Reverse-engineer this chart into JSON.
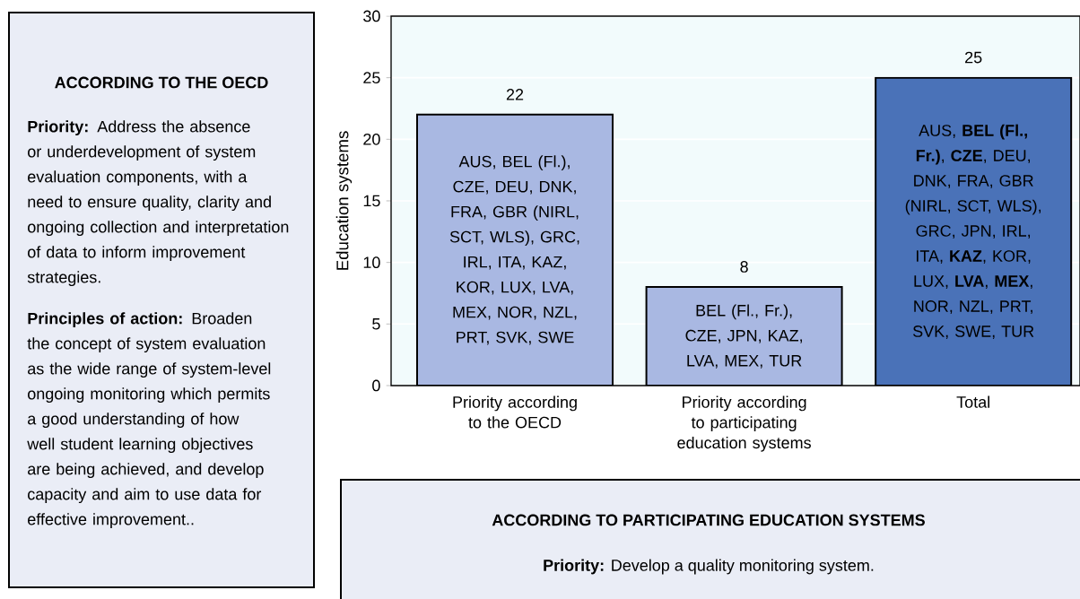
{
  "chart_data": {
    "type": "bar",
    "categories": [
      "Priority according to the OECD",
      "Priority according to participating education systems",
      "Total"
    ],
    "values": [
      22,
      8,
      25
    ],
    "colors": [
      "#a9b8e2",
      "#a9b8e2",
      "#4a72b8"
    ],
    "ylabel": "Education systems",
    "ylim": [
      0,
      30
    ],
    "yticks": [
      0,
      5,
      10,
      15,
      20,
      25,
      30
    ],
    "grid": "y",
    "data_labels": true,
    "annotations": [
      "ACCORDING TO THE OECD",
      "**Priority:** Address the absence or underdevelopment of system evaluation components, with a need to ensure quality, clarity and ongoing collection and interpretation of data to inform improvement strategies.",
      "**Principles of action:** Broaden the concept of system evaluation as the wide range of system-level ongoing monitoring which permits a good understanding of how well student learning objectives are being achieved, and develop capacity and aim to use data for effective improvement..",
      "AUS, BEL (Fl.), CZE, DEU, DNK, FRA, GBR (NIRL, SCT, WLS), GRC, IRL, ITA, KAZ, KOR, LUX, LVA, MEX, NOR, NZL, PRT, SVK, SWE",
      "BEL (Fl., Fr.), CZE, JPN, KAZ, LVA, MEX, TUR",
      "AUS, **BEL (Fl., Fr.)**, **CZE**, DEU, DNK, FRA, GBR (NIRL, SCT, WLS), GRC, JPN, IRL, ITA, **KAZ**, KOR, LUX, **LVA**, **MEX**, NOR, NZL, PRT, SVK, SWE, TUR",
      "ACCORDING TO PARTICIPATING EDUCATION SYSTEMS",
      "**Priority:** Develop a quality monitoring system."
    ]
  }
}
